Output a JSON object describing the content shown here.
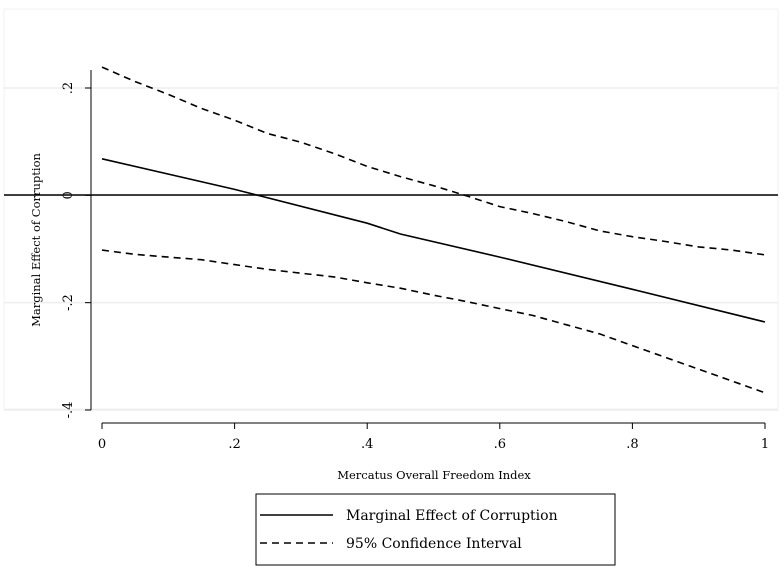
{
  "chart_data": {
    "type": "line",
    "xlabel": "Mercatus Overall Freedom Index",
    "ylabel": "Marginal Effect of Corruption",
    "xlim": [
      0,
      1
    ],
    "ylim": [
      -0.4,
      0.2
    ],
    "x_ticks": [
      0,
      0.2,
      0.4,
      0.6,
      0.8,
      1
    ],
    "x_tick_labels": [
      "0",
      ".2",
      ".4",
      ".6",
      ".8",
      "1"
    ],
    "y_ticks": [
      -0.4,
      -0.2,
      0,
      0.2
    ],
    "y_tick_labels": [
      "-.4",
      "-.2",
      "0",
      ".2"
    ],
    "grid": "horizontal",
    "legend_placement": "bottom",
    "reference_line_y": 0,
    "series": [
      {
        "name": "Marginal Effect of Corruption",
        "style": "solid",
        "x": [
          0,
          0.2,
          0.4,
          0.45,
          0.6,
          0.8,
          1.0
        ],
        "y": [
          0.068,
          0.011,
          -0.052,
          -0.072,
          -0.115,
          -0.175,
          -0.236
        ]
      },
      {
        "name": "95% Confidence Interval",
        "style": "dashed",
        "x": [
          0,
          0.05,
          0.1,
          0.15,
          0.2,
          0.25,
          0.3,
          0.35,
          0.4,
          0.45,
          0.5,
          0.55,
          0.6,
          0.65,
          0.7,
          0.75,
          0.8,
          0.85,
          0.9,
          0.95,
          1.0
        ],
        "y": [
          0.239,
          0.212,
          0.188,
          0.162,
          0.14,
          0.115,
          0.099,
          0.078,
          0.054,
          0.035,
          0.018,
          -0.001,
          -0.021,
          -0.034,
          -0.049,
          -0.066,
          -0.077,
          -0.086,
          -0.096,
          -0.102,
          -0.111
        ]
      },
      {
        "name": "",
        "style": "dashed",
        "x": [
          0,
          0.05,
          0.1,
          0.15,
          0.2,
          0.25,
          0.3,
          0.35,
          0.4,
          0.45,
          0.5,
          0.55,
          0.6,
          0.65,
          0.7,
          0.75,
          0.8,
          0.85,
          0.9,
          0.95,
          1.0
        ],
        "y": [
          -0.102,
          -0.11,
          -0.115,
          -0.12,
          -0.129,
          -0.138,
          -0.145,
          -0.152,
          -0.163,
          -0.173,
          -0.186,
          -0.198,
          -0.211,
          -0.224,
          -0.241,
          -0.258,
          -0.28,
          -0.302,
          -0.324,
          -0.346,
          -0.368
        ]
      }
    ]
  }
}
